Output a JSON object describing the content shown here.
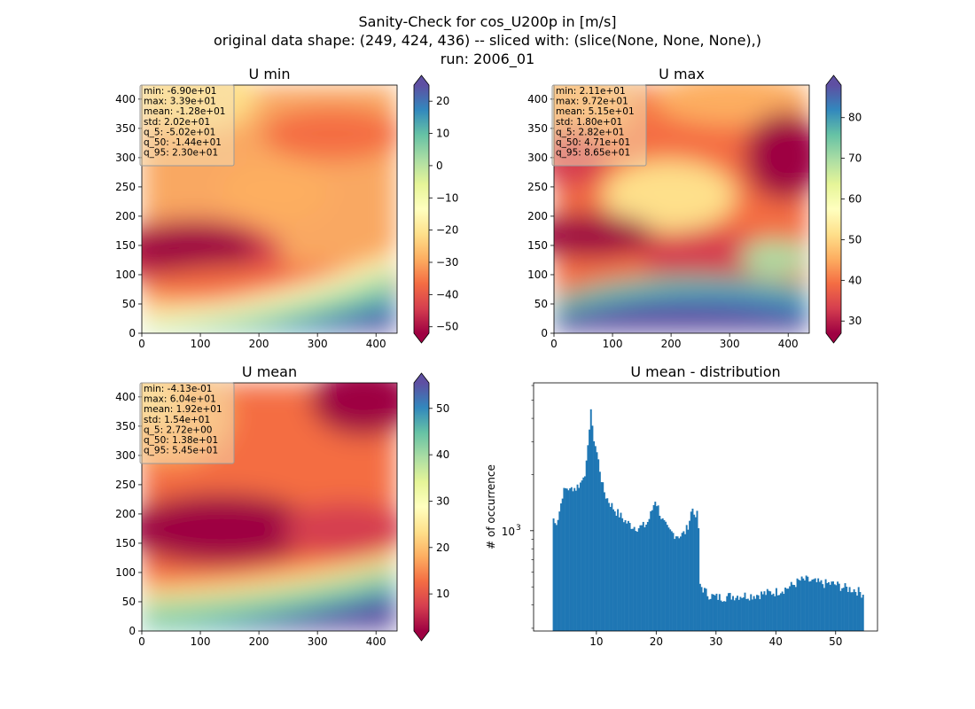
{
  "figure": {
    "suptitle_lines": [
      "Sanity-Check for cos_U200p in [m/s]",
      "original data shape: (249, 424, 436) -- sliced with: (slice(None, None, None),)",
      "run: 2006_01"
    ]
  },
  "colormap": {
    "name": "Spectral",
    "stops": [
      "#9e0142",
      "#d53e4f",
      "#f46d43",
      "#fdae61",
      "#fee08b",
      "#ffffbf",
      "#e6f598",
      "#abdda4",
      "#66c2a5",
      "#3288bd",
      "#5e4fa2"
    ]
  },
  "chart_data": [
    {
      "type": "heatmap",
      "title": "U min",
      "xlim": [
        0,
        436
      ],
      "ylim": [
        0,
        424
      ],
      "xticks": [
        0,
        100,
        200,
        300,
        400
      ],
      "yticks": [
        0,
        50,
        100,
        150,
        200,
        250,
        300,
        350,
        400
      ],
      "colorbar": {
        "range": [
          -52,
          25
        ],
        "ticks": [
          -50,
          -40,
          -30,
          -20,
          -10,
          0,
          10,
          20
        ],
        "extend": "both"
      },
      "stats": [
        "min: -6.90e+01",
        "max: 3.39e+01",
        "mean: -1.28e+01",
        "std: 2.02e+01",
        "q_5: -5.02e+01",
        "q_50: -1.44e+01",
        "q_95: 2.30e+01"
      ]
    },
    {
      "type": "heatmap",
      "title": "U max",
      "xlim": [
        0,
        436
      ],
      "ylim": [
        0,
        424
      ],
      "xticks": [
        0,
        100,
        200,
        300,
        400
      ],
      "yticks": [
        0,
        50,
        100,
        150,
        200,
        250,
        300,
        350,
        400
      ],
      "colorbar": {
        "range": [
          27,
          88
        ],
        "ticks": [
          30,
          40,
          50,
          60,
          70,
          80
        ],
        "extend": "both"
      },
      "stats": [
        "min: 2.11e+01",
        "max: 9.72e+01",
        "mean: 5.15e+01",
        "std: 1.80e+01",
        "q_5: 2.82e+01",
        "q_50: 4.71e+01",
        "q_95: 8.65e+01"
      ]
    },
    {
      "type": "heatmap",
      "title": "U mean",
      "xlim": [
        0,
        436
      ],
      "ylim": [
        0,
        424
      ],
      "xticks": [
        0,
        100,
        200,
        300,
        400
      ],
      "yticks": [
        0,
        50,
        100,
        150,
        200,
        250,
        300,
        350,
        400
      ],
      "colorbar": {
        "range": [
          2,
          55.5
        ],
        "ticks": [
          10,
          20,
          30,
          40,
          50
        ],
        "extend": "both"
      },
      "stats": [
        "min: -4.13e-01",
        "max: 6.04e+01",
        "mean: 1.92e+01",
        "std: 1.54e+01",
        "q_5: 2.72e+00",
        "q_50: 1.38e+01",
        "q_95: 5.45e+01"
      ]
    },
    {
      "type": "bar",
      "title": "U mean - distribution",
      "ylabel": "# of occurrence",
      "yscale": "log",
      "xlim": [
        -0.5,
        57
      ],
      "ylim": [
        290,
        6200
      ],
      "xticks": [
        10,
        20,
        30,
        40,
        50
      ],
      "yticks_labeled": [
        {
          "value": 1000,
          "base": "10",
          "exp": "3"
        }
      ],
      "bin_width": 0.25,
      "color": "#1f77b4",
      "hist_anchor_points": [
        [
          2.7,
          1230
        ],
        [
          3.0,
          1080
        ],
        [
          3.5,
          1150
        ],
        [
          4.0,
          1350
        ],
        [
          4.3,
          1560
        ],
        [
          4.7,
          1650
        ],
        [
          5.0,
          1700
        ],
        [
          5.3,
          1700
        ],
        [
          5.5,
          1620
        ],
        [
          5.7,
          1650
        ],
        [
          6.0,
          1720
        ],
        [
          6.5,
          1680
        ],
        [
          7.0,
          1760
        ],
        [
          7.5,
          1820
        ],
        [
          7.8,
          2000
        ],
        [
          8.2,
          2100
        ],
        [
          8.5,
          2500
        ],
        [
          8.8,
          3500
        ],
        [
          9.0,
          4900
        ],
        [
          9.3,
          3500
        ],
        [
          9.6,
          3100
        ],
        [
          10.0,
          2700
        ],
        [
          10.5,
          2200
        ],
        [
          11.0,
          1750
        ],
        [
          11.5,
          1550
        ],
        [
          12.0,
          1450
        ],
        [
          13.0,
          1300
        ],
        [
          14.0,
          1200
        ],
        [
          15.0,
          1110
        ],
        [
          16.0,
          1060
        ],
        [
          17.0,
          1040
        ],
        [
          18.0,
          1060
        ],
        [
          18.5,
          1100
        ],
        [
          19.0,
          1200
        ],
        [
          19.5,
          1350
        ],
        [
          19.8,
          1480
        ],
        [
          20.0,
          1420
        ],
        [
          20.5,
          1280
        ],
        [
          21.0,
          1140
        ],
        [
          22.0,
          1000
        ],
        [
          23.0,
          960
        ],
        [
          24.0,
          940
        ],
        [
          24.5,
          960
        ],
        [
          25.0,
          1000
        ],
        [
          25.5,
          1120
        ],
        [
          26.0,
          1330
        ],
        [
          26.3,
          1300
        ],
        [
          26.6,
          1100
        ],
        [
          27.0,
          1450
        ],
        [
          27.2,
          520
        ],
        [
          28.0,
          480
        ],
        [
          28.5,
          460
        ],
        [
          29.0,
          450
        ],
        [
          30.0,
          440
        ],
        [
          31.0,
          440
        ],
        [
          32.0,
          445
        ],
        [
          34.0,
          450
        ],
        [
          36.0,
          450
        ],
        [
          38.0,
          460
        ],
        [
          40.0,
          470
        ],
        [
          42.0,
          495
        ],
        [
          43.0,
          515
        ],
        [
          44.0,
          540
        ],
        [
          45.0,
          545
        ],
        [
          46.0,
          535
        ],
        [
          47.0,
          525
        ],
        [
          48.0,
          520
        ],
        [
          49.0,
          520
        ],
        [
          50.0,
          515
        ],
        [
          51.0,
          500
        ],
        [
          52.0,
          490
        ],
        [
          53.0,
          485
        ],
        [
          54.0,
          470
        ],
        [
          54.5,
          460
        ]
      ]
    }
  ]
}
